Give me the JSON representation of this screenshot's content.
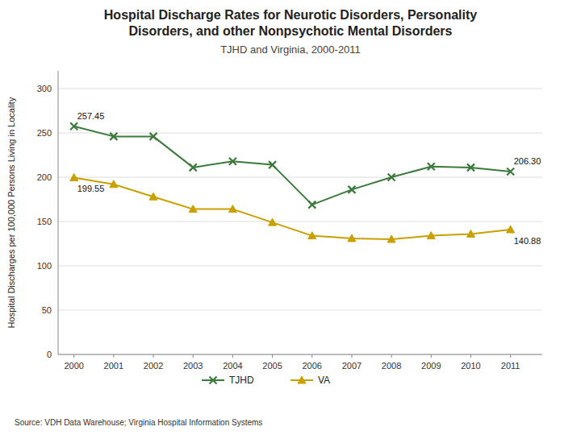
{
  "chart_data": {
    "type": "line",
    "title": [
      "Hospital Discharge Rates for Neurotic Disorders, Personality",
      "Disorders, and other Nonpsychotic Mental Disorders"
    ],
    "subtitle": "TJHD and Virginia, 2000-2011",
    "y_label": "Hospital Discharges per 100,000 Persons Living in Locality",
    "source": "Source: VDH Data Warehouse; Virginia Hospital Information Systems",
    "x": [
      2000,
      2001,
      2002,
      2003,
      2004,
      2005,
      2006,
      2007,
      2008,
      2009,
      2010,
      2011
    ],
    "xlim": [
      1999.6,
      2011.8
    ],
    "xticks": [
      2000,
      2001,
      2002,
      2003,
      2004,
      2005,
      2006,
      2007,
      2008,
      2009,
      2010,
      2011
    ],
    "ylim": [
      0,
      320
    ],
    "yticks": [
      0,
      50,
      100,
      150,
      200,
      250,
      300
    ],
    "grid": true,
    "legend": "bottom",
    "series": [
      {
        "name": "TJHD",
        "color": "#3a7a3a",
        "marker": "x",
        "values": [
          257.45,
          246.0,
          246.0,
          211.0,
          218.0,
          214.0,
          169.0,
          186.0,
          200.0,
          212.0,
          211.0,
          206.3
        ],
        "value_labels": [
          "257.45",
          null,
          null,
          null,
          null,
          null,
          null,
          null,
          null,
          null,
          null,
          "206.30"
        ]
      },
      {
        "name": "VA",
        "color": "#c8a000",
        "marker": "triangle",
        "values": [
          199.55,
          192.0,
          178.0,
          164.0,
          164.0,
          149.0,
          134.0,
          131.0,
          130.0,
          134.0,
          136.0,
          140.88
        ],
        "value_labels": [
          "199.55",
          null,
          null,
          null,
          null,
          null,
          null,
          null,
          null,
          null,
          null,
          "140.88"
        ]
      }
    ]
  }
}
